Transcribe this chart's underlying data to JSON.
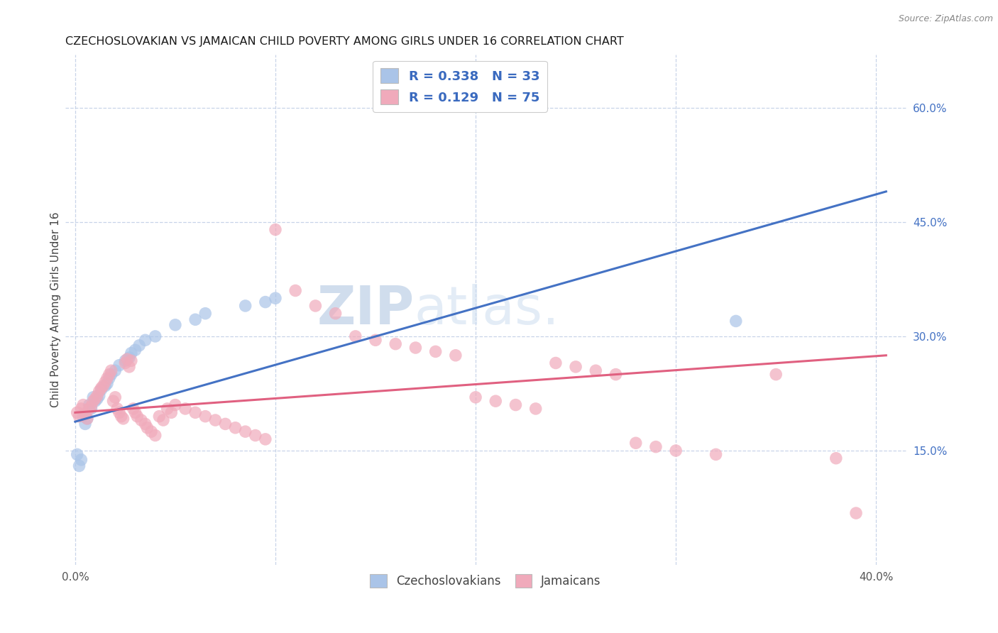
{
  "title": "CZECHOSLOVAKIAN VS JAMAICAN CHILD POVERTY AMONG GIRLS UNDER 16 CORRELATION CHART",
  "source": "Source: ZipAtlas.com",
  "ylabel": "Child Poverty Among Girls Under 16",
  "y_ticks_right": [
    0.15,
    0.3,
    0.45,
    0.6
  ],
  "y_tick_labels_right": [
    "15.0%",
    "30.0%",
    "45.0%",
    "60.0%"
  ],
  "xlim": [
    -0.005,
    0.415
  ],
  "ylim": [
    0.0,
    0.67
  ],
  "background_color": "#ffffff",
  "grid_color": "#c8d4e8",
  "watermark_zip": "ZIP",
  "watermark_atlas": "atlas.",
  "legend_R1": "R = 0.338",
  "legend_N1": "N = 33",
  "legend_R2": "R = 0.129",
  "legend_N2": "N = 75",
  "legend_color": "#3a6abf",
  "czech_color": "#aac4e8",
  "jamaican_color": "#f0aabb",
  "czech_line_color": "#4472c4",
  "jamaican_line_color": "#e06080",
  "czech_scatter": [
    [
      0.001,
      0.145
    ],
    [
      0.002,
      0.13
    ],
    [
      0.003,
      0.138
    ],
    [
      0.004,
      0.195
    ],
    [
      0.005,
      0.185
    ],
    [
      0.006,
      0.192
    ],
    [
      0.007,
      0.21
    ],
    [
      0.008,
      0.205
    ],
    [
      0.009,
      0.22
    ],
    [
      0.01,
      0.215
    ],
    [
      0.011,
      0.218
    ],
    [
      0.012,
      0.222
    ],
    [
      0.013,
      0.23
    ],
    [
      0.015,
      0.235
    ],
    [
      0.016,
      0.238
    ],
    [
      0.017,
      0.245
    ],
    [
      0.018,
      0.25
    ],
    [
      0.02,
      0.255
    ],
    [
      0.022,
      0.262
    ],
    [
      0.025,
      0.268
    ],
    [
      0.027,
      0.272
    ],
    [
      0.028,
      0.278
    ],
    [
      0.03,
      0.282
    ],
    [
      0.032,
      0.288
    ],
    [
      0.035,
      0.295
    ],
    [
      0.04,
      0.3
    ],
    [
      0.05,
      0.315
    ],
    [
      0.06,
      0.322
    ],
    [
      0.065,
      0.33
    ],
    [
      0.085,
      0.34
    ],
    [
      0.095,
      0.345
    ],
    [
      0.1,
      0.35
    ],
    [
      0.33,
      0.32
    ]
  ],
  "jamaican_scatter": [
    [
      0.001,
      0.2
    ],
    [
      0.002,
      0.195
    ],
    [
      0.003,
      0.205
    ],
    [
      0.004,
      0.21
    ],
    [
      0.005,
      0.198
    ],
    [
      0.006,
      0.192
    ],
    [
      0.007,
      0.205
    ],
    [
      0.008,
      0.208
    ],
    [
      0.009,
      0.215
    ],
    [
      0.01,
      0.218
    ],
    [
      0.011,
      0.222
    ],
    [
      0.012,
      0.228
    ],
    [
      0.013,
      0.232
    ],
    [
      0.014,
      0.235
    ],
    [
      0.015,
      0.24
    ],
    [
      0.016,
      0.245
    ],
    [
      0.017,
      0.25
    ],
    [
      0.018,
      0.255
    ],
    [
      0.019,
      0.215
    ],
    [
      0.02,
      0.22
    ],
    [
      0.021,
      0.205
    ],
    [
      0.022,
      0.2
    ],
    [
      0.023,
      0.195
    ],
    [
      0.024,
      0.192
    ],
    [
      0.025,
      0.265
    ],
    [
      0.026,
      0.27
    ],
    [
      0.027,
      0.26
    ],
    [
      0.028,
      0.268
    ],
    [
      0.029,
      0.205
    ],
    [
      0.03,
      0.2
    ],
    [
      0.031,
      0.195
    ],
    [
      0.033,
      0.19
    ],
    [
      0.035,
      0.185
    ],
    [
      0.036,
      0.18
    ],
    [
      0.038,
      0.175
    ],
    [
      0.04,
      0.17
    ],
    [
      0.042,
      0.195
    ],
    [
      0.044,
      0.19
    ],
    [
      0.046,
      0.205
    ],
    [
      0.048,
      0.2
    ],
    [
      0.05,
      0.21
    ],
    [
      0.055,
      0.205
    ],
    [
      0.06,
      0.2
    ],
    [
      0.065,
      0.195
    ],
    [
      0.07,
      0.19
    ],
    [
      0.075,
      0.185
    ],
    [
      0.08,
      0.18
    ],
    [
      0.085,
      0.175
    ],
    [
      0.09,
      0.17
    ],
    [
      0.095,
      0.165
    ],
    [
      0.1,
      0.44
    ],
    [
      0.11,
      0.36
    ],
    [
      0.12,
      0.34
    ],
    [
      0.13,
      0.33
    ],
    [
      0.14,
      0.3
    ],
    [
      0.15,
      0.295
    ],
    [
      0.16,
      0.29
    ],
    [
      0.17,
      0.285
    ],
    [
      0.18,
      0.28
    ],
    [
      0.19,
      0.275
    ],
    [
      0.2,
      0.22
    ],
    [
      0.21,
      0.215
    ],
    [
      0.22,
      0.21
    ],
    [
      0.23,
      0.205
    ],
    [
      0.24,
      0.265
    ],
    [
      0.25,
      0.26
    ],
    [
      0.26,
      0.255
    ],
    [
      0.27,
      0.25
    ],
    [
      0.28,
      0.16
    ],
    [
      0.29,
      0.155
    ],
    [
      0.3,
      0.15
    ],
    [
      0.32,
      0.145
    ],
    [
      0.35,
      0.25
    ],
    [
      0.38,
      0.14
    ],
    [
      0.39,
      0.068
    ]
  ],
  "czech_line_x": [
    0.0,
    0.405
  ],
  "czech_line_y": [
    0.188,
    0.49
  ],
  "jamaican_line_x": [
    0.0,
    0.405
  ],
  "jamaican_line_y": [
    0.2,
    0.275
  ]
}
